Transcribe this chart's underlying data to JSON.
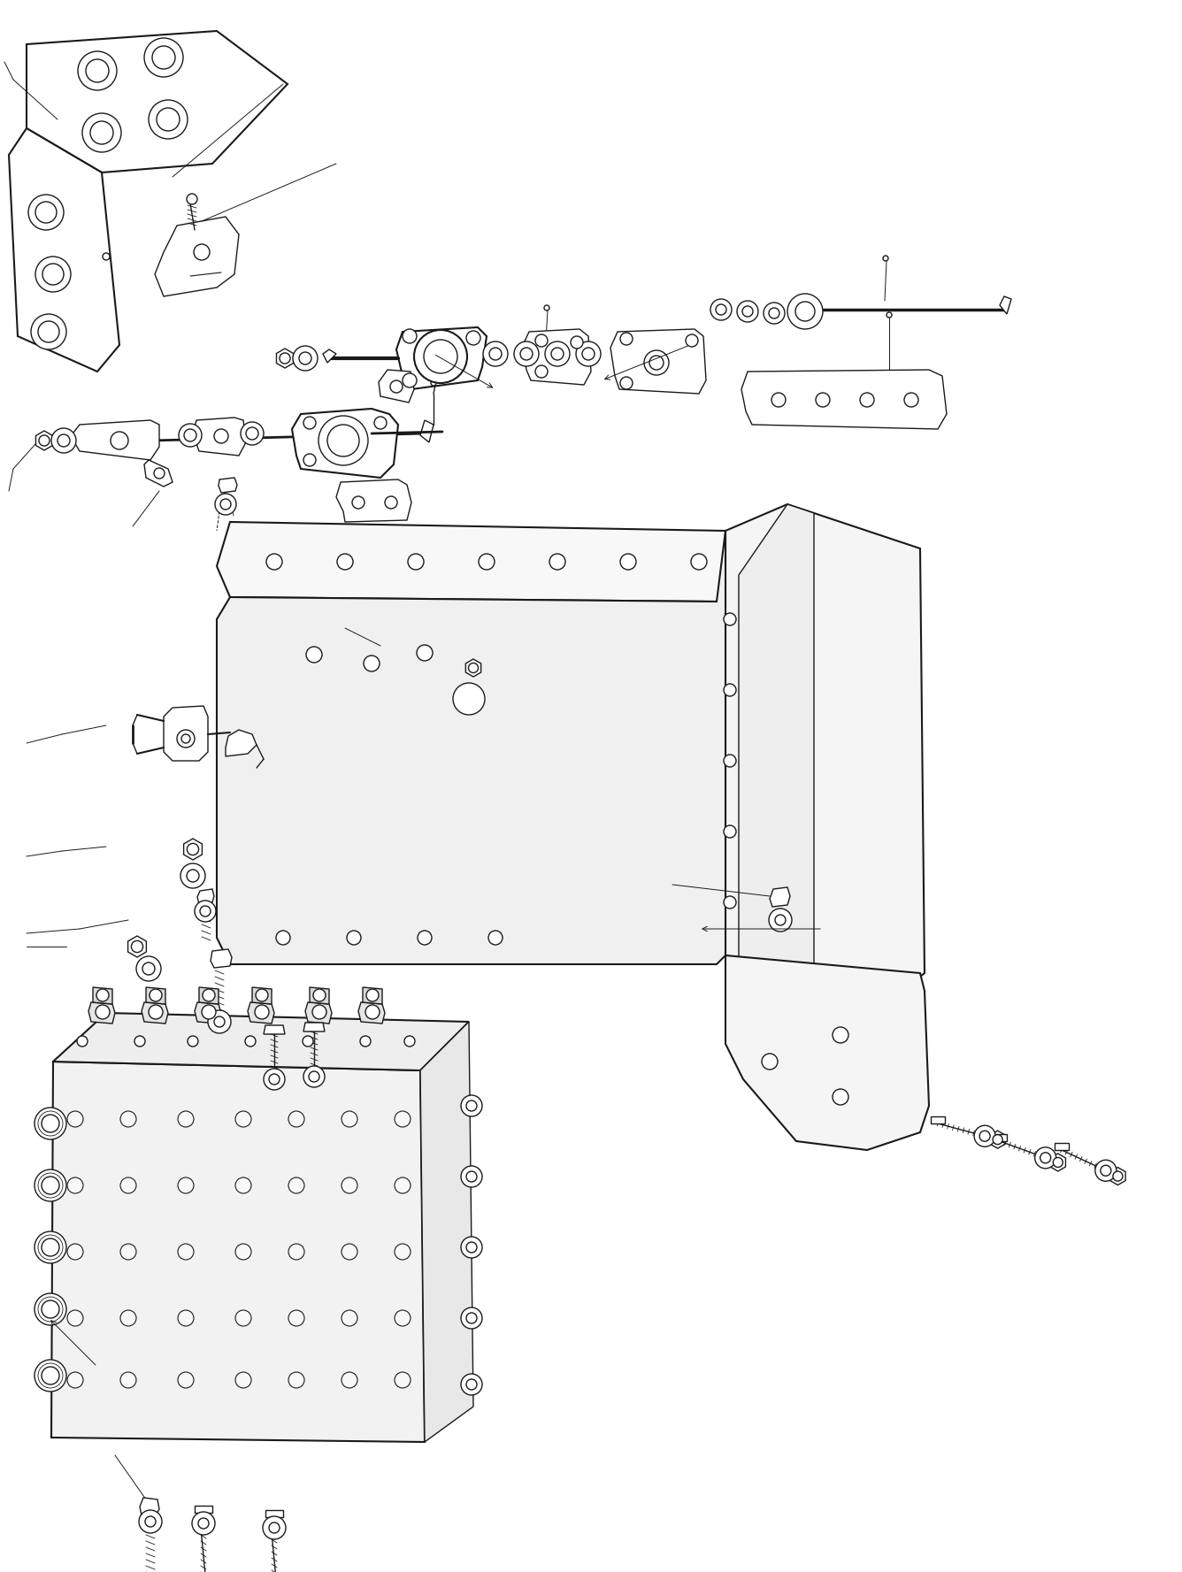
{
  "background_color": "#ffffff",
  "line_color": "#1a1a1a",
  "fig_width": 13.36,
  "fig_height": 17.77,
  "dpi": 100,
  "lw": 1.0,
  "alw": 0.7
}
